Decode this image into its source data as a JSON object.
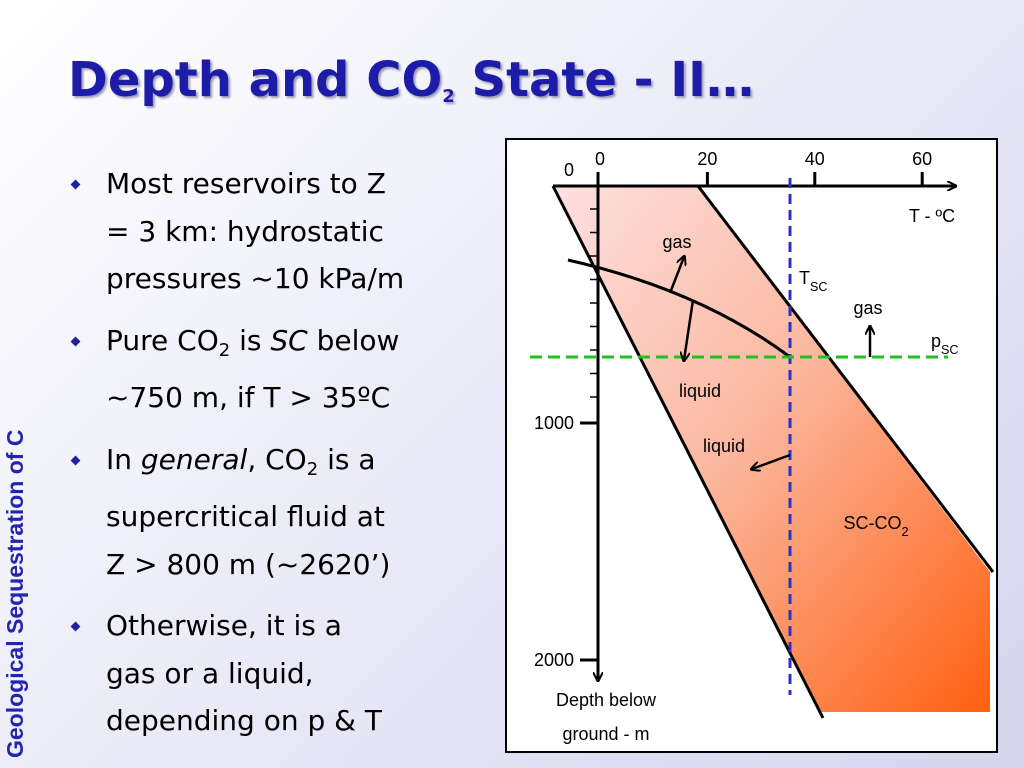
{
  "slide": {
    "title": [
      "Depth and CO",
      {
        "sub": "2"
      },
      " State - II…"
    ],
    "side_label": "Geological Sequestration of C",
    "bullets": [
      {
        "lines": [
          [
            "Most reservoirs to Z"
          ],
          [
            "= 3 km: hydrostatic"
          ],
          [
            "pressures ~10 kPa/m"
          ]
        ]
      },
      {
        "lines": [
          [
            "Pure CO",
            {
              "sub": "2"
            },
            " is ",
            {
              "i": "SC"
            },
            " below"
          ],
          [
            "~750 m, if T > 35ºC"
          ]
        ]
      },
      {
        "lines": [
          [
            "In ",
            {
              "i": "general"
            },
            ", CO",
            {
              "sub": "2"
            },
            " is a"
          ],
          [
            "supercritical fluid at"
          ],
          [
            "Z > 800 m (~2620’)"
          ]
        ]
      },
      {
        "lines": [
          [
            "Otherwise, it is a"
          ],
          [
            "gas or a liquid,"
          ],
          [
            "depending on p & T"
          ]
        ]
      }
    ]
  },
  "diagram": {
    "temperature_ticks": [
      0,
      20,
      40,
      60
    ],
    "depth_ticks": [
      0,
      1000,
      2000
    ],
    "labels": {
      "t_axis": [
        "T - ºC"
      ],
      "t_sc": [
        "T",
        {
          "sub": "SC"
        }
      ],
      "p_sc": [
        "p",
        {
          "sub": "SC"
        }
      ],
      "gas_left": [
        "gas"
      ],
      "gas_right": [
        "gas"
      ],
      "liquid_left": [
        "liquid"
      ],
      "liquid_right": [
        "liquid"
      ],
      "sc_co2": [
        "SC-CO",
        {
          "sub": "2"
        }
      ],
      "depth_axis_1": [
        "Depth below"
      ],
      "depth_axis_2": [
        "ground - m"
      ]
    }
  }
}
